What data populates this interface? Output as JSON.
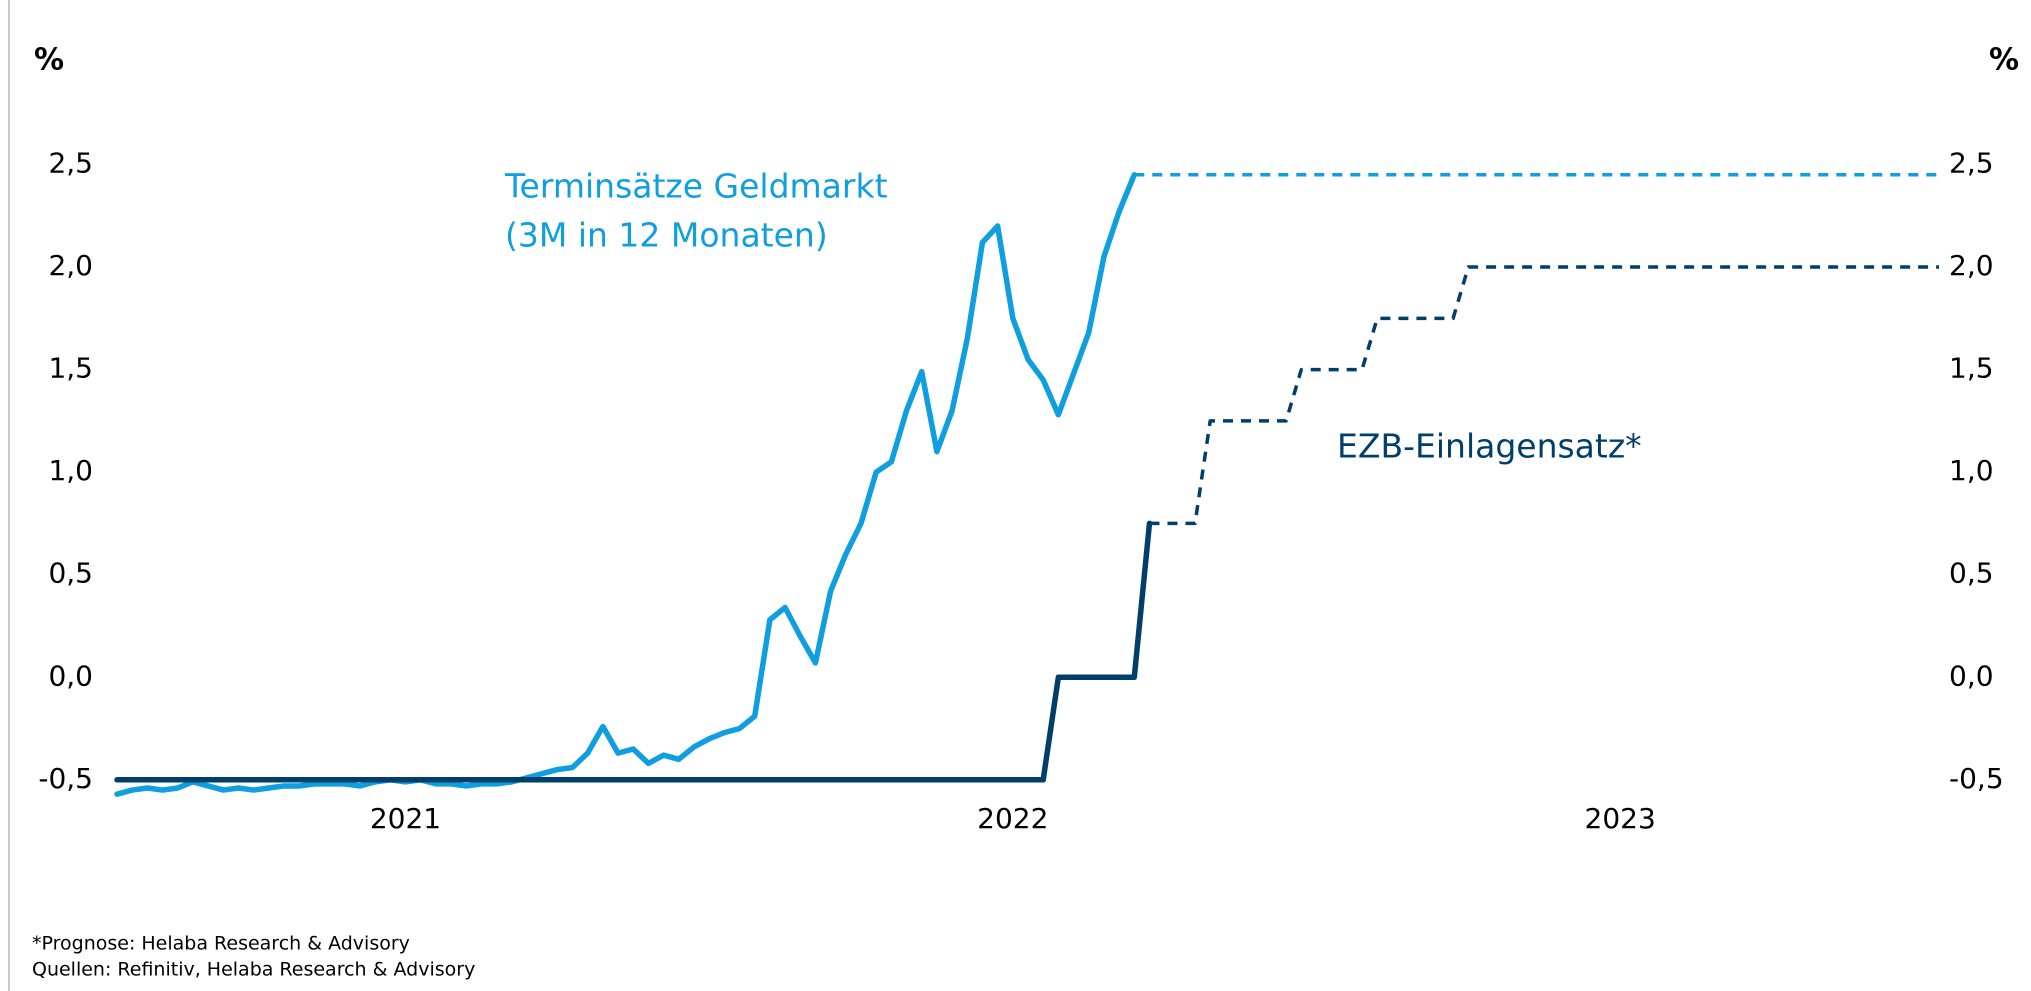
{
  "chart_data": {
    "type": "line",
    "y_unit": "%",
    "y2_unit": "%",
    "notes": [
      "*Prognose: Helaba Research & Advisory",
      "Quellen: Refinitiv, Helaba Research & Advisory"
    ],
    "categories": [
      null,
      null,
      null,
      null,
      null,
      null,
      null,
      null,
      null,
      null,
      null,
      null,
      null,
      null,
      null,
      null,
      null,
      null,
      null,
      "2021",
      null,
      null,
      null,
      null,
      null,
      null,
      null,
      null,
      null,
      null,
      null,
      null,
      null,
      null,
      null,
      null,
      null,
      null,
      null,
      null,
      null,
      null,
      null,
      null,
      null,
      null,
      null,
      null,
      null,
      null,
      null,
      null,
      null,
      null,
      null,
      null,
      null,
      null,
      null,
      "2022",
      null,
      null,
      null,
      null,
      null,
      null,
      null,
      null,
      null,
      null,
      null,
      null,
      null,
      null,
      null,
      null,
      null,
      null,
      null,
      null,
      null,
      null,
      null,
      null,
      null,
      null,
      null,
      null,
      null,
      null,
      null,
      null,
      null,
      null,
      null,
      null,
      null,
      null,
      null,
      "2023",
      null,
      null,
      null,
      null,
      null,
      null,
      null,
      null,
      null,
      null,
      null,
      null,
      null,
      null,
      null,
      null,
      null,
      null,
      null,
      null,
      null
    ],
    "ylim": [
      -0.5,
      2.5
    ],
    "yticks": [
      {
        "value": -0.5,
        "label": "-0,5"
      },
      {
        "value": 0,
        "label": "0,0"
      },
      {
        "value": 0.5,
        "label": "0,5"
      },
      {
        "value": 1,
        "label": "1,0"
      },
      {
        "value": 1.5,
        "label": "1,5"
      },
      {
        "value": 2,
        "label": "2,0"
      },
      {
        "value": 2.5,
        "label": "2,5"
      }
    ],
    "y2lim": [
      -0.5,
      2.5
    ],
    "y2ticks": [
      {
        "value": -0.5,
        "label": "-0,5"
      },
      {
        "value": 0,
        "label": "0,0"
      },
      {
        "value": 0.5,
        "label": "0,5"
      },
      {
        "value": 1,
        "label": "1,0"
      },
      {
        "value": 1.5,
        "label": "1,5"
      },
      {
        "value": 2,
        "label": "2,0"
      },
      {
        "value": 2.5,
        "label": "2,5"
      }
    ],
    "grid": false,
    "series": [
      {
        "label": [
          "Terminsätze Geldmarkt",
          "(3M in 12 Monaten)"
        ],
        "color": "#0f9ee0",
        "dashed": false,
        "values": [
          -0.57,
          -0.55,
          -0.54,
          -0.55,
          -0.54,
          -0.51,
          -0.53,
          -0.55,
          -0.54,
          -0.55,
          -0.54,
          -0.53,
          -0.53,
          -0.52,
          -0.52,
          -0.52,
          -0.53,
          -0.51,
          -0.5,
          -0.51,
          -0.5,
          -0.52,
          -0.52,
          -0.53,
          -0.52,
          -0.52,
          -0.51,
          -0.49,
          -0.47,
          -0.45,
          -0.44,
          -0.37,
          -0.24,
          -0.37,
          -0.35,
          -0.42,
          -0.38,
          -0.4,
          -0.34,
          -0.3,
          -0.27,
          -0.25,
          -0.19,
          0.28,
          0.34,
          0.2,
          0.07,
          0.42,
          0.6,
          0.75,
          1.0,
          1.05,
          1.3,
          1.49,
          1.1,
          1.3,
          1.65,
          2.12,
          2.2,
          1.75,
          1.55,
          1.45,
          1.28,
          1.48,
          1.68,
          2.05,
          2.27,
          2.45,
          null,
          null,
          null,
          null,
          null,
          null,
          null,
          null,
          null,
          null,
          null,
          null,
          null,
          null,
          null,
          null,
          null,
          null,
          null,
          null,
          null,
          null,
          null,
          null,
          null,
          null,
          null,
          null,
          null,
          null,
          null,
          null,
          null,
          null,
          null,
          null,
          null,
          null,
          null,
          null,
          null,
          null,
          null,
          null,
          null,
          null,
          null,
          null,
          null,
          null,
          null,
          null,
          null
        ]
      },
      {
        "color": "#0f9ee0",
        "dashed": true,
        "values": [
          null,
          null,
          null,
          null,
          null,
          null,
          null,
          null,
          null,
          null,
          null,
          null,
          null,
          null,
          null,
          null,
          null,
          null,
          null,
          null,
          null,
          null,
          null,
          null,
          null,
          null,
          null,
          null,
          null,
          null,
          null,
          null,
          null,
          null,
          null,
          null,
          null,
          null,
          null,
          null,
          null,
          null,
          null,
          null,
          null,
          null,
          null,
          null,
          null,
          null,
          null,
          null,
          null,
          null,
          null,
          null,
          null,
          null,
          null,
          null,
          null,
          null,
          null,
          null,
          null,
          null,
          null,
          2.45,
          2.45,
          2.45,
          2.45,
          2.45,
          2.45,
          2.45,
          2.45,
          2.45,
          2.45,
          2.45,
          2.45,
          2.45,
          2.45,
          2.45,
          2.45,
          2.45,
          2.45,
          2.45,
          2.45,
          2.45,
          2.45,
          2.45,
          2.45,
          2.45,
          2.45,
          2.45,
          2.45,
          2.45,
          2.45,
          2.45,
          2.45,
          2.45,
          2.45,
          2.45,
          2.45,
          2.45,
          2.45,
          2.45,
          2.45,
          2.45,
          2.45,
          2.45,
          2.45,
          2.45,
          2.45,
          2.45,
          2.45,
          2.45,
          2.45,
          2.45,
          2.45,
          2.45,
          2.45
        ]
      },
      {
        "label": [
          "EZB-Einlagensatz*"
        ],
        "color": "#003f6b",
        "dashed": false,
        "values": [
          -0.5,
          -0.5,
          -0.5,
          -0.5,
          -0.5,
          -0.5,
          -0.5,
          -0.5,
          -0.5,
          -0.5,
          -0.5,
          -0.5,
          -0.5,
          -0.5,
          -0.5,
          -0.5,
          -0.5,
          -0.5,
          -0.5,
          -0.5,
          -0.5,
          -0.5,
          -0.5,
          -0.5,
          -0.5,
          -0.5,
          -0.5,
          -0.5,
          -0.5,
          -0.5,
          -0.5,
          -0.5,
          -0.5,
          -0.5,
          -0.5,
          -0.5,
          -0.5,
          -0.5,
          -0.5,
          -0.5,
          -0.5,
          -0.5,
          -0.5,
          -0.5,
          -0.5,
          -0.5,
          -0.5,
          -0.5,
          -0.5,
          -0.5,
          -0.5,
          -0.5,
          -0.5,
          -0.5,
          -0.5,
          -0.5,
          -0.5,
          -0.5,
          -0.5,
          -0.5,
          -0.5,
          -0.5,
          0,
          0,
          0,
          0,
          0,
          0,
          0.75,
          null,
          null,
          null,
          null,
          null,
          null,
          null,
          null,
          null,
          null,
          null,
          null,
          null,
          null,
          null,
          null,
          null,
          null,
          null,
          null,
          null,
          null,
          null,
          null,
          null,
          null,
          null,
          null,
          null,
          null,
          null,
          null,
          null,
          null,
          null,
          null,
          null,
          null,
          null,
          null,
          null,
          null,
          null,
          null,
          null,
          null,
          null,
          null,
          null,
          null,
          null,
          null
        ]
      },
      {
        "color": "#003f6b",
        "dashed": true,
        "values": [
          null,
          null,
          null,
          null,
          null,
          null,
          null,
          null,
          null,
          null,
          null,
          null,
          null,
          null,
          null,
          null,
          null,
          null,
          null,
          null,
          null,
          null,
          null,
          null,
          null,
          null,
          null,
          null,
          null,
          null,
          null,
          null,
          null,
          null,
          null,
          null,
          null,
          null,
          null,
          null,
          null,
          null,
          null,
          null,
          null,
          null,
          null,
          null,
          null,
          null,
          null,
          null,
          null,
          null,
          null,
          null,
          null,
          null,
          null,
          null,
          null,
          null,
          null,
          null,
          null,
          null,
          null,
          null,
          0.75,
          0.75,
          0.75,
          0.75,
          1.25,
          1.25,
          1.25,
          1.25,
          1.25,
          1.25,
          1.5,
          1.5,
          1.5,
          1.5,
          1.5,
          1.75,
          1.75,
          1.75,
          1.75,
          1.75,
          1.75,
          2.0,
          2.0,
          2.0,
          2.0,
          2.0,
          2.0,
          2.0,
          2.0,
          2.0,
          2.0,
          2.0,
          2.0,
          2.0,
          2.0,
          2.0,
          2.0,
          2.0,
          2.0,
          2.0,
          2.0,
          2.0,
          2.0,
          2.0,
          2.0,
          2.0,
          2.0,
          2.0,
          2.0,
          2.0,
          2.0,
          2.0,
          2.0
        ]
      }
    ]
  }
}
